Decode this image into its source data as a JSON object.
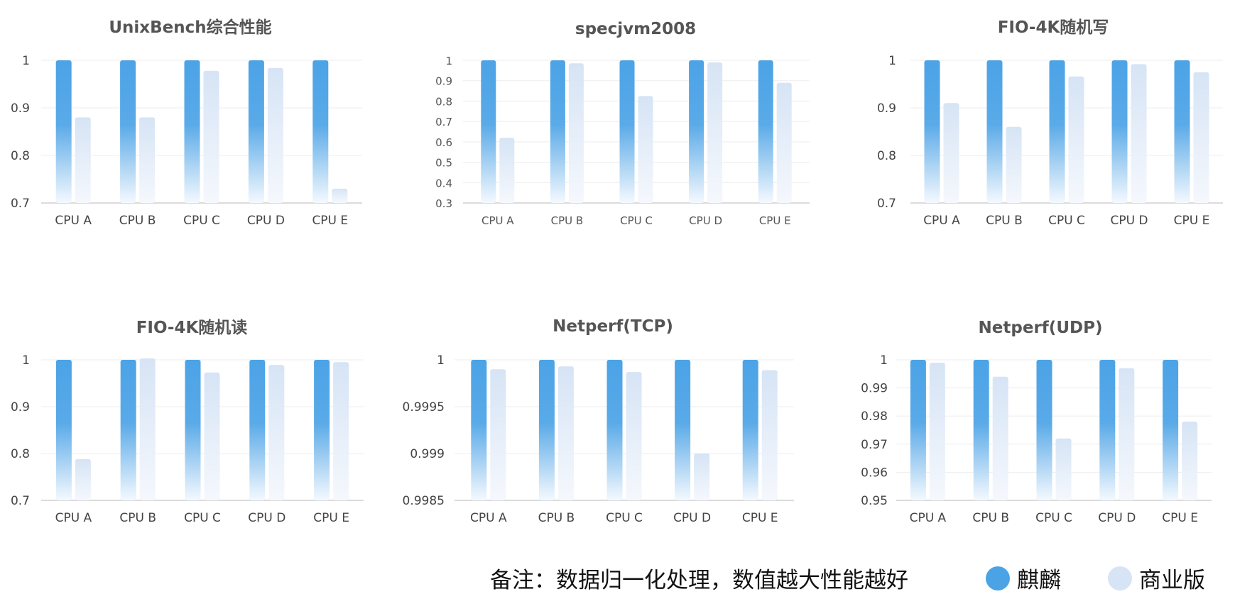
{
  "colors": {
    "kylin": "#4ba3e6",
    "commercial": "#d6e4f5",
    "grid": "#ededed",
    "axis": "#cfcfcf"
  },
  "legend": {
    "series_a": "麒麟",
    "series_b": "商业版"
  },
  "footnote": "备注：数据归一化处理，数值越大性能越好",
  "chart_data": [
    {
      "type": "bar",
      "title": "UnixBench综合性能",
      "categories": [
        "CPU A",
        "CPU B",
        "CPU C",
        "CPU D",
        "CPU E"
      ],
      "ylim": [
        0.7,
        1
      ],
      "yticks": [
        "0.7",
        "0.8",
        "0.9",
        "1"
      ],
      "series": [
        {
          "name": "麒麟",
          "values": [
            1,
            1,
            1,
            1,
            1
          ]
        },
        {
          "name": "商业版",
          "values": [
            0.88,
            0.88,
            0.978,
            0.984,
            0.73
          ]
        }
      ]
    },
    {
      "type": "bar",
      "title": "specjvm2008",
      "categories": [
        "CPU A",
        "CPU B",
        "CPU C",
        "CPU D",
        "CPU E"
      ],
      "ylim": [
        0.3,
        1
      ],
      "yticks": [
        "0.3",
        "0.4",
        "0.5",
        "0.6",
        "0.7",
        "0.8",
        "0.9",
        "1"
      ],
      "series": [
        {
          "name": "麒麟",
          "values": [
            1,
            1,
            1,
            1,
            1
          ]
        },
        {
          "name": "商业版",
          "values": [
            0.62,
            0.985,
            0.825,
            0.99,
            0.89
          ]
        }
      ]
    },
    {
      "type": "bar",
      "title": "FIO-4K随机写",
      "categories": [
        "CPU A",
        "CPU B",
        "CPU C",
        "CPU D",
        "CPU E"
      ],
      "ylim": [
        0.7,
        1
      ],
      "yticks": [
        "0.7",
        "0.8",
        "0.9",
        "1"
      ],
      "series": [
        {
          "name": "麒麟",
          "values": [
            1,
            1,
            1,
            1,
            1
          ]
        },
        {
          "name": "商业版",
          "values": [
            0.91,
            0.86,
            0.966,
            0.992,
            0.975
          ]
        }
      ]
    },
    {
      "type": "bar",
      "title": "FIO-4K随机读",
      "categories": [
        "CPU A",
        "CPU B",
        "CPU C",
        "CPU D",
        "CPU E"
      ],
      "ylim": [
        0.7,
        1
      ],
      "yticks": [
        "0.7",
        "0.8",
        "0.9",
        "1"
      ],
      "series": [
        {
          "name": "麒麟",
          "values": [
            1,
            1,
            1,
            1,
            1
          ]
        },
        {
          "name": "商业版",
          "values": [
            0.788,
            1.003,
            0.973,
            0.989,
            0.995
          ]
        }
      ]
    },
    {
      "type": "bar",
      "title": "Netperf(TCP)",
      "categories": [
        "CPU A",
        "CPU B",
        "CPU C",
        "CPU D",
        "CPU E"
      ],
      "ylim": [
        0.9985,
        1
      ],
      "yticks": [
        "0.9985",
        "0.999",
        "0.9995",
        "1"
      ],
      "series": [
        {
          "name": "麒麟",
          "values": [
            1,
            1,
            1,
            1,
            1
          ]
        },
        {
          "name": "商业版",
          "values": [
            0.9999,
            0.99993,
            0.99987,
            0.999,
            0.99989
          ]
        }
      ]
    },
    {
      "type": "bar",
      "title": "Netperf(UDP)",
      "categories": [
        "CPU A",
        "CPU B",
        "CPU C",
        "CPU D",
        "CPU E"
      ],
      "ylim": [
        0.95,
        1
      ],
      "yticks": [
        "0.95",
        "0.96",
        "0.97",
        "0.98",
        "0.99",
        "1"
      ],
      "series": [
        {
          "name": "麒麟",
          "values": [
            1,
            1,
            1,
            1,
            1
          ]
        },
        {
          "name": "商业版",
          "values": [
            0.999,
            0.994,
            0.972,
            0.997,
            0.978
          ]
        }
      ]
    }
  ]
}
